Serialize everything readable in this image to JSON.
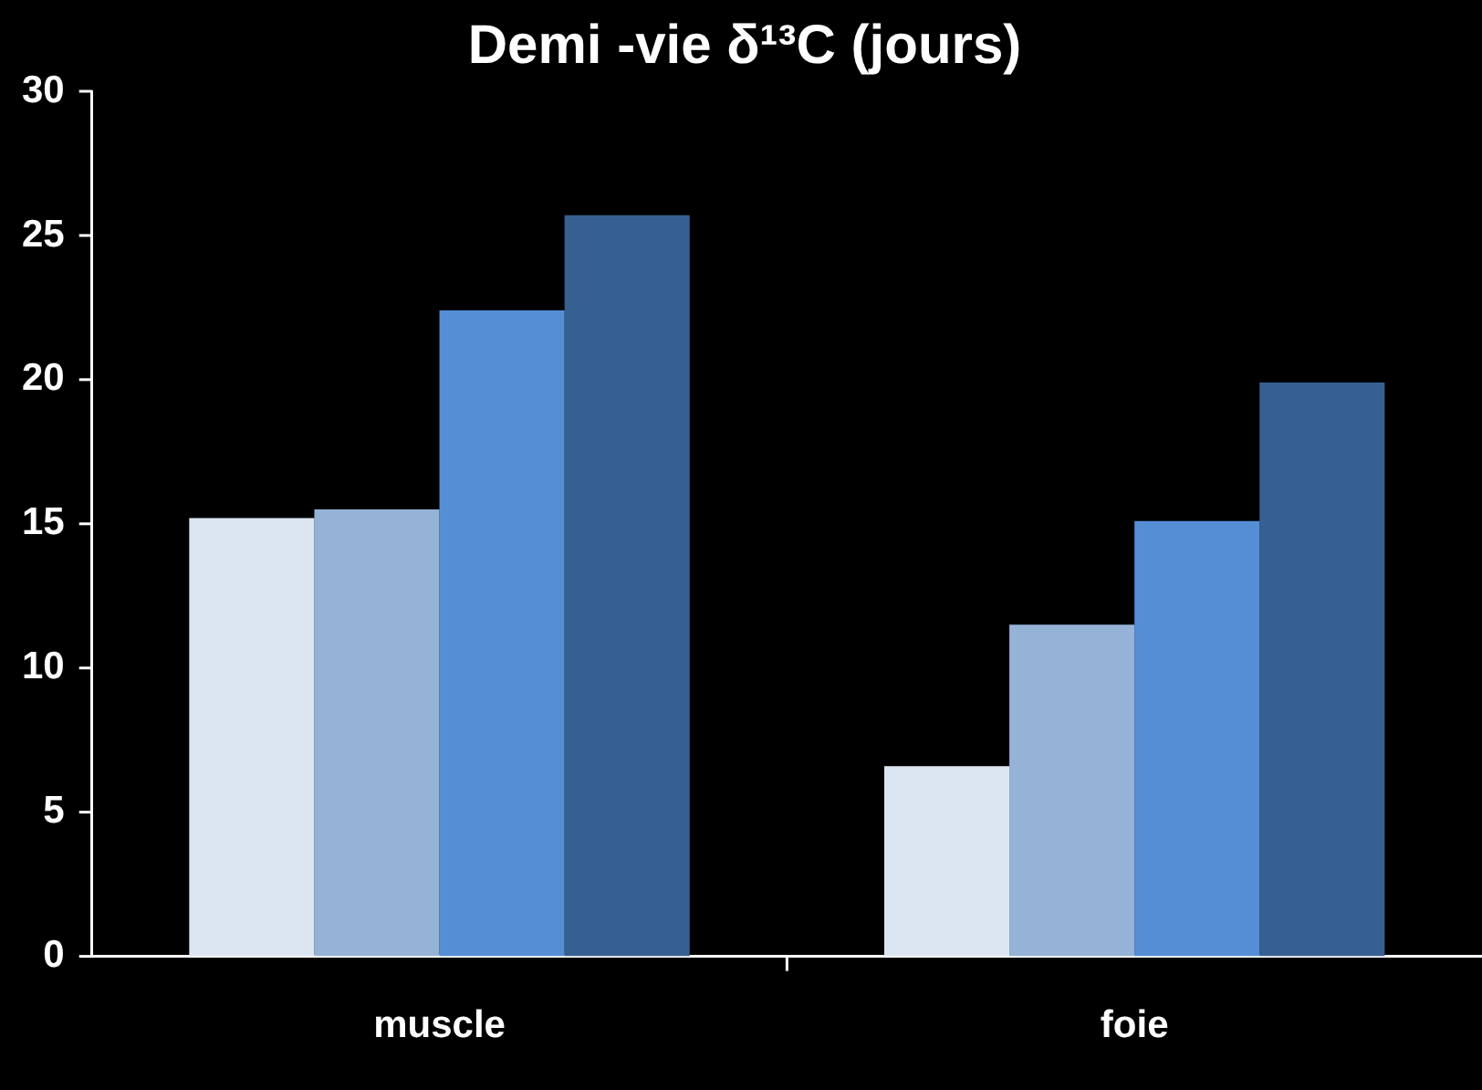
{
  "chart_data": {
    "type": "bar",
    "title": "Demi -vie δ¹³C (jours)",
    "categories": [
      "muscle",
      "foie"
    ],
    "series": [
      {
        "color": "#dce6f2",
        "values": [
          15.2,
          6.6
        ]
      },
      {
        "color": "#95b3d7",
        "values": [
          15.5,
          11.5
        ]
      },
      {
        "color": "#558ed5",
        "values": [
          22.4,
          15.1
        ]
      },
      {
        "color": "#376092",
        "values": [
          25.7,
          19.9
        ]
      }
    ],
    "ylim": [
      0,
      30
    ],
    "yticks": [
      0,
      5,
      10,
      15,
      20,
      25,
      30
    ],
    "grid": false,
    "legend": false
  }
}
